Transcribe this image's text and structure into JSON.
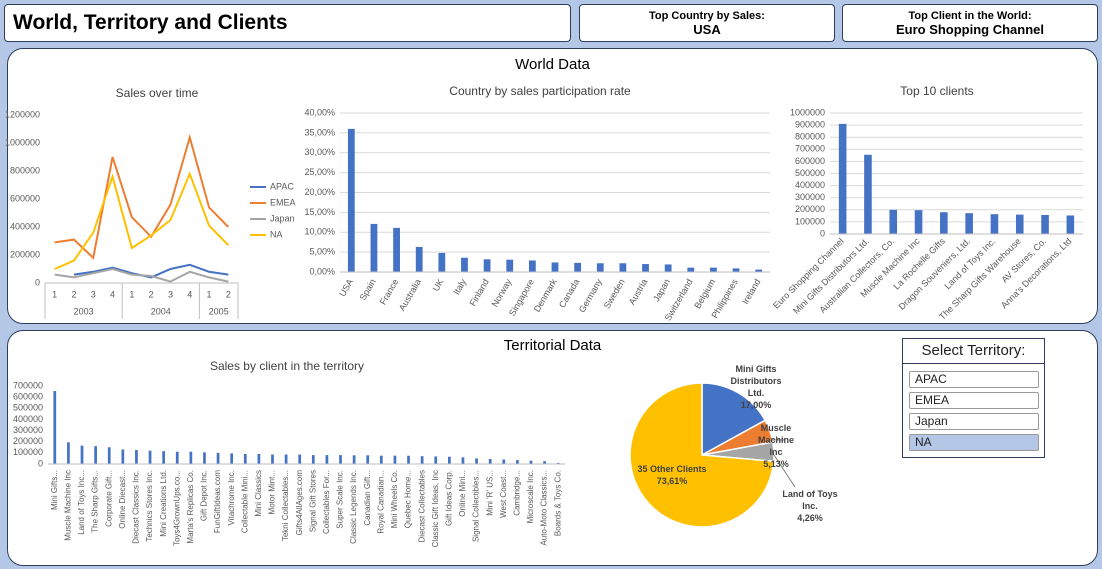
{
  "header": {
    "title": "World, Territory and Clients",
    "cards": [
      {
        "label": "Top Country by Sales:",
        "value": "USA"
      },
      {
        "label": "Top Client in the World:",
        "value": "Euro Shopping Channel"
      }
    ]
  },
  "sections": [
    "World Data",
    "Territorial Data"
  ],
  "slicer": {
    "title": "Select Territory:",
    "items": [
      "APAC",
      "EMEA",
      "Japan",
      "NA"
    ],
    "selected": "NA"
  },
  "chart_data": [
    {
      "type": "line",
      "title": "Sales over time",
      "categories": [
        [
          "2003",
          "1"
        ],
        [
          "2003",
          "2"
        ],
        [
          "2003",
          "3"
        ],
        [
          "2003",
          "4"
        ],
        [
          "2004",
          "1"
        ],
        [
          "2004",
          "2"
        ],
        [
          "2004",
          "3"
        ],
        [
          "2004",
          "4"
        ],
        [
          "2005",
          "1"
        ],
        [
          "2005",
          "2"
        ]
      ],
      "series": [
        {
          "name": "APAC",
          "color": "#4472c4",
          "values": [
            null,
            60000,
            80000,
            110000,
            70000,
            40000,
            100000,
            130000,
            80000,
            60000
          ]
        },
        {
          "name": "EMEA",
          "color": "#ed7d31",
          "values": [
            290000,
            310000,
            180000,
            900000,
            470000,
            330000,
            560000,
            1040000,
            540000,
            400000
          ]
        },
        {
          "name": "Japan",
          "color": "#a5a5a5",
          "values": [
            60000,
            40000,
            70000,
            100000,
            60000,
            50000,
            10000,
            80000,
            40000,
            10000
          ]
        },
        {
          "name": "NA",
          "color": "#ffc000",
          "values": [
            100000,
            160000,
            360000,
            760000,
            250000,
            340000,
            450000,
            780000,
            410000,
            270000
          ]
        }
      ],
      "ylim": [
        0,
        1200000
      ],
      "yticks": [
        0,
        200000,
        400000,
        600000,
        800000,
        1000000,
        1200000
      ],
      "grid": false,
      "legend": "right"
    },
    {
      "type": "bar",
      "title": "Country by sales participation rate",
      "color": "#4472c4",
      "categories": [
        "USA",
        "Spain",
        "France",
        "Australia",
        "UK",
        "Italy",
        "Finland",
        "Norway",
        "Singapore",
        "Denmark",
        "Canada",
        "Germany",
        "Sweden",
        "Austria",
        "Japan",
        "Switzerland",
        "Belgium",
        "Philippines",
        "Ireland"
      ],
      "values": [
        36.0,
        12.1,
        11.1,
        6.3,
        4.8,
        3.6,
        3.2,
        3.1,
        2.9,
        2.4,
        2.3,
        2.2,
        2.2,
        2.0,
        1.9,
        1.1,
        1.1,
        0.9,
        0.6
      ],
      "ylim": [
        0,
        40
      ],
      "yticks": [
        {
          "value": 0,
          "label": "0,00%"
        },
        {
          "value": 5,
          "label": "5,00%"
        },
        {
          "value": 10,
          "label": "10,00%"
        },
        {
          "value": 15,
          "label": "15,00%"
        },
        {
          "value": 20,
          "label": "20,00%"
        },
        {
          "value": 25,
          "label": "25,00%"
        },
        {
          "value": 30,
          "label": "30,00%"
        },
        {
          "value": 35,
          "label": "35,00%"
        },
        {
          "value": 40,
          "label": "40,00%"
        }
      ],
      "grid": true
    },
    {
      "type": "bar",
      "title": "Top 10 clients",
      "color": "#4472c4",
      "categories": [
        "Euro Shopping Channel",
        "Mini Gifts Distributors Ltd.",
        "Australian Collectors, Co.",
        "Muscle Machine Inc",
        "La Rochelle Gifts",
        "Dragon Souveniers, Ltd.",
        "Land of Toys Inc.",
        "The Sharp Gifts Warehouse",
        "AV Stores, Co.",
        "Anna's Decorations, Ltd"
      ],
      "values": [
        910000,
        655000,
        200000,
        197000,
        180000,
        172000,
        164000,
        160000,
        157000,
        153000
      ],
      "ylim": [
        0,
        1000000
      ],
      "yticks": [
        0,
        100000,
        200000,
        300000,
        400000,
        500000,
        600000,
        700000,
        800000,
        900000,
        1000000
      ],
      "grid": true
    },
    {
      "type": "bar",
      "title": "Sales by client in the territory",
      "color": "#4472c4",
      "categories": [
        "Mini Gifts...",
        "Muscle Machine Inc",
        "Land of Toys Inc...",
        "The Sharp Gifts...",
        "Corporate Gift...",
        "Online Diecast...",
        "Diecast Classics Inc.",
        "Technics Stores Inc.",
        "Mini Creations Ltd.",
        "Toys4GrownUps.co...",
        "Marta's Replicas Co.",
        "Gift Depot Inc.",
        "FunGiftIdeas.com",
        "Vitachrome Inc.",
        "Collectable Mini...",
        "Mini Classics",
        "Motor Mint...",
        "Tekni Collectables...",
        "Gifts4AllAges.com",
        "Signal Gift Stores",
        "Collectables For...",
        "Super Scale Inc.",
        "Classic Legends Inc.",
        "Canadian Gift...",
        "Royal Canadian...",
        "Mini Wheels Co.",
        "Quebec Home...",
        "Diecast Collectables",
        "Classic Gift Ideas, Inc",
        "Gift Ideas Corp.",
        "Online Mini...",
        "Signal Collectibles...",
        "Mini 'R' US...",
        "West Coast...",
        "Cambridge...",
        "Microscale Inc.",
        "Auto-Moto Classics...",
        "Boards & Toys Co."
      ],
      "values": [
        655000,
        195000,
        165000,
        160000,
        150000,
        130000,
        125000,
        120000,
        115000,
        110000,
        110000,
        105000,
        100000,
        95000,
        90000,
        90000,
        85000,
        85000,
        85000,
        80000,
        80000,
        80000,
        78000,
        78000,
        75000,
        75000,
        74000,
        70000,
        68000,
        65000,
        60000,
        50000,
        45000,
        40000,
        35000,
        30000,
        25000,
        10000
      ],
      "ylim": [
        0,
        700000
      ],
      "yticks": [
        0,
        100000,
        200000,
        300000,
        400000,
        500000,
        600000,
        700000
      ],
      "grid": false
    },
    {
      "type": "pie",
      "labels": [
        "Mini Gifts Distributors Ltd.",
        "Muscle Machine Inc",
        "Land of Toys Inc.",
        "35 Other Clients"
      ],
      "values": [
        17.0,
        5.13,
        4.26,
        73.61
      ],
      "value_labels": [
        "17,00%",
        "5,13%",
        "4,26%",
        "73,61%"
      ],
      "colors": [
        "#4472c4",
        "#ed7d31",
        "#a5a5a5",
        "#ffc000"
      ]
    }
  ]
}
